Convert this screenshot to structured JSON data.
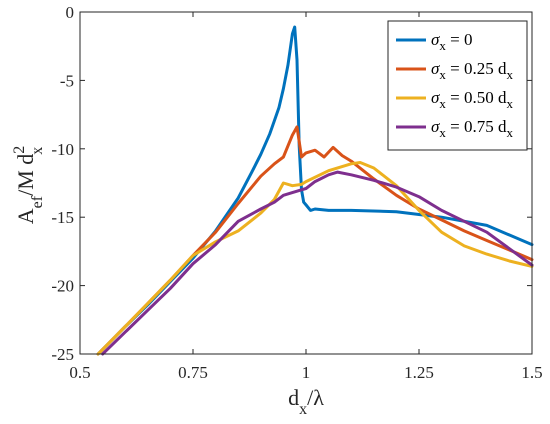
{
  "chart_data": {
    "type": "line",
    "xlabel": {
      "main": "d",
      "sub": "x",
      "rest": "/λ"
    },
    "ylabel": {
      "a": "A",
      "a_sub": "ef",
      "mid": "/M d",
      "sup": "2",
      "sub": "x"
    },
    "xlim": [
      0.5,
      1.5
    ],
    "ylim": [
      -25,
      0
    ],
    "xticks": [
      "0.5",
      "0.75",
      "1",
      "1.25",
      "1.5"
    ],
    "yticks": [
      "0",
      "-5",
      "-10",
      "-15",
      "-20",
      "-25"
    ],
    "grid": false,
    "legend_position": "top-right",
    "series": [
      {
        "legend": {
          "sym": "σ",
          "sub": "x",
          "eq": " = 0",
          "unit": "",
          "unit_sub": ""
        },
        "color": "#0072BD",
        "x": [
          0.54,
          0.6,
          0.65,
          0.7,
          0.75,
          0.8,
          0.85,
          0.88,
          0.9,
          0.92,
          0.94,
          0.95,
          0.96,
          0.97,
          0.975,
          0.98,
          0.985,
          0.99,
          0.995,
          1.0,
          1.01,
          1.02,
          1.05,
          1.1,
          1.2,
          1.3,
          1.4,
          1.5
        ],
        "y": [
          -25,
          -23,
          -21.4,
          -19.7,
          -18.0,
          -16.0,
          -13.6,
          -11.7,
          -10.4,
          -8.9,
          -7.0,
          -5.6,
          -3.9,
          -1.6,
          -1.1,
          -3.5,
          -9.8,
          -13.0,
          -13.9,
          -14.1,
          -14.5,
          -14.4,
          -14.5,
          -14.5,
          -14.6,
          -15.0,
          -15.6,
          -17.0
        ]
      },
      {
        "legend": {
          "sym": "σ",
          "sub": "x",
          "eq": " = 0.25 d",
          "unit": "",
          "unit_sub": "x"
        },
        "color": "#D95319",
        "x": [
          0.54,
          0.6,
          0.65,
          0.7,
          0.75,
          0.8,
          0.85,
          0.9,
          0.93,
          0.95,
          0.97,
          0.98,
          0.99,
          1.0,
          1.02,
          1.04,
          1.06,
          1.08,
          1.1,
          1.15,
          1.2,
          1.25,
          1.3,
          1.35,
          1.4,
          1.45,
          1.5
        ],
        "y": [
          -25,
          -23,
          -21.3,
          -19.6,
          -17.8,
          -16.1,
          -14.0,
          -12.0,
          -11.1,
          -10.6,
          -9.0,
          -8.4,
          -10.6,
          -10.3,
          -10.1,
          -10.6,
          -9.9,
          -10.5,
          -10.9,
          -12.2,
          -13.4,
          -14.4,
          -15.2,
          -16.0,
          -16.7,
          -17.4,
          -18.1
        ]
      },
      {
        "legend": {
          "sym": "σ",
          "sub": "x",
          "eq": " = 0.50 d",
          "unit": "",
          "unit_sub": "x"
        },
        "color": "#EDB120",
        "x": [
          0.54,
          0.6,
          0.65,
          0.7,
          0.75,
          0.8,
          0.85,
          0.9,
          0.93,
          0.95,
          0.97,
          0.99,
          1.0,
          1.05,
          1.1,
          1.12,
          1.15,
          1.2,
          1.25,
          1.3,
          1.35,
          1.4,
          1.45,
          1.5
        ],
        "y": [
          -25,
          -23,
          -21.3,
          -19.6,
          -17.8,
          -16.8,
          -16.0,
          -14.7,
          -13.7,
          -12.5,
          -12.7,
          -12.6,
          -12.4,
          -11.6,
          -11.1,
          -11.0,
          -11.4,
          -12.7,
          -14.5,
          -16.1,
          -17.1,
          -17.7,
          -18.2,
          -18.6
        ]
      },
      {
        "legend": {
          "sym": "σ",
          "sub": "x",
          "eq": " = 0.75 d",
          "unit": "",
          "unit_sub": "x"
        },
        "color": "#7E2F8E",
        "x": [
          0.55,
          0.6,
          0.65,
          0.7,
          0.75,
          0.8,
          0.85,
          0.9,
          0.93,
          0.95,
          0.97,
          0.99,
          1.0,
          1.02,
          1.05,
          1.07,
          1.1,
          1.15,
          1.2,
          1.25,
          1.3,
          1.35,
          1.4,
          1.45,
          1.5
        ],
        "y": [
          -25,
          -23.4,
          -21.8,
          -20.2,
          -18.4,
          -17.0,
          -15.3,
          -14.4,
          -13.9,
          -13.4,
          -13.2,
          -13.0,
          -12.9,
          -12.4,
          -11.9,
          -11.7,
          -11.9,
          -12.3,
          -12.8,
          -13.5,
          -14.5,
          -15.3,
          -16.1,
          -17.3,
          -18.5
        ]
      }
    ]
  }
}
